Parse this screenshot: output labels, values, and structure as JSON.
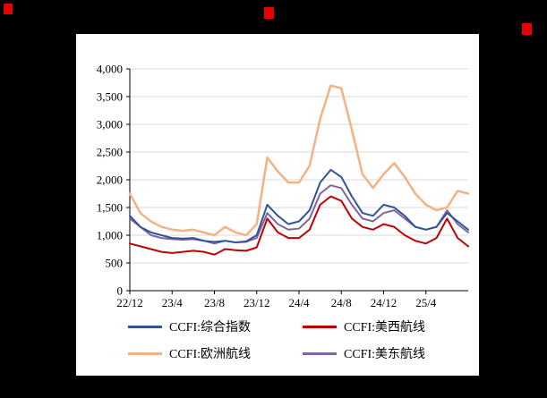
{
  "colors": {
    "background": "#000000",
    "panel": "#FFFFFF",
    "grid": "#D9D9D9",
    "axis": "#000000",
    "red_mark": "#E60000"
  },
  "chart_data": {
    "type": "line",
    "title": "",
    "xlabel": "",
    "ylabel": "",
    "ylim": [
      0,
      4000
    ],
    "y_ticks": [
      0,
      500,
      1000,
      1500,
      2000,
      2500,
      3000,
      3500,
      4000
    ],
    "y_tick_labels": [
      "0",
      "500",
      "1,000",
      "1,500",
      "2,000",
      "2,500",
      "3,000",
      "3,500",
      "4,000"
    ],
    "x": [
      "22/12",
      "23/1",
      "23/2",
      "23/3",
      "23/4",
      "23/5",
      "23/6",
      "23/7",
      "23/8",
      "23/9",
      "23/10",
      "23/11",
      "23/12",
      "24/1",
      "24/2",
      "24/3",
      "24/4",
      "24/5",
      "24/6",
      "24/7",
      "24/8",
      "24/9",
      "24/10",
      "24/11",
      "24/12",
      "25/1",
      "25/2",
      "25/3",
      "25/4",
      "25/5",
      "25/6",
      "25/7",
      "25/8"
    ],
    "x_tick_labels": [
      "22/12",
      "23/4",
      "23/8",
      "23/12",
      "24/4",
      "24/8",
      "24/12",
      "25/4"
    ],
    "grid": "horizontal",
    "legend_position": "bottom",
    "draw_order": [
      2,
      3,
      0,
      1
    ],
    "series": [
      {
        "name": "CCFI:综合指数",
        "color": "#2F5597",
        "width": 2,
        "values": [
          1350,
          1150,
          1050,
          1000,
          950,
          940,
          950,
          900,
          880,
          900,
          870,
          890,
          1000,
          1550,
          1350,
          1200,
          1250,
          1450,
          1950,
          2180,
          2050,
          1700,
          1400,
          1350,
          1550,
          1500,
          1350,
          1150,
          1100,
          1150,
          1400,
          1250,
          1100
        ]
      },
      {
        "name": "CCFI:美西航线",
        "color": "#C00000",
        "width": 2,
        "values": [
          850,
          800,
          750,
          700,
          680,
          700,
          720,
          700,
          650,
          750,
          730,
          720,
          780,
          1300,
          1050,
          950,
          950,
          1100,
          1550,
          1700,
          1620,
          1300,
          1150,
          1100,
          1200,
          1150,
          1000,
          900,
          850,
          950,
          1300,
          950,
          800
        ]
      },
      {
        "name": "CCFI:欧洲航线",
        "color": "#F4B183",
        "width": 2.5,
        "values": [
          1750,
          1400,
          1250,
          1150,
          1100,
          1080,
          1100,
          1050,
          1000,
          1150,
          1050,
          1000,
          1200,
          2400,
          2150,
          1950,
          1950,
          2250,
          3100,
          3700,
          3650,
          2900,
          2100,
          1850,
          2100,
          2300,
          2050,
          1750,
          1550,
          1450,
          1500,
          1800,
          1750
        ]
      },
      {
        "name": "CCFI:美东航线",
        "color": "#8064A2",
        "width": 2,
        "values": [
          1300,
          1150,
          1000,
          950,
          930,
          920,
          930,
          900,
          850,
          900,
          870,
          880,
          950,
          1400,
          1200,
          1100,
          1120,
          1300,
          1750,
          1900,
          1850,
          1550,
          1300,
          1250,
          1400,
          1450,
          1300,
          1150,
          1100,
          1150,
          1450,
          1200,
          1050
        ]
      }
    ]
  }
}
